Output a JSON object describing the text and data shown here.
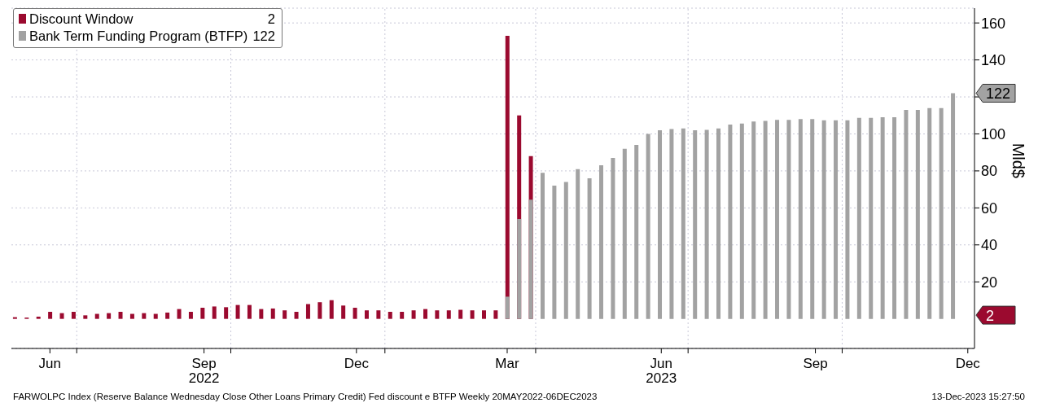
{
  "chart_data": {
    "type": "bar",
    "ylabel": "Mld$",
    "x": [
      "2022-05-25",
      "2022-06-01",
      "2022-06-08",
      "2022-06-15",
      "2022-06-22",
      "2022-06-29",
      "2022-07-06",
      "2022-07-13",
      "2022-07-20",
      "2022-07-27",
      "2022-08-03",
      "2022-08-10",
      "2022-08-17",
      "2022-08-24",
      "2022-08-31",
      "2022-09-07",
      "2022-09-14",
      "2022-09-21",
      "2022-09-28",
      "2022-10-05",
      "2022-10-12",
      "2022-10-19",
      "2022-10-26",
      "2022-11-02",
      "2022-11-09",
      "2022-11-16",
      "2022-11-23",
      "2022-11-30",
      "2022-12-07",
      "2022-12-14",
      "2022-12-21",
      "2022-12-28",
      "2023-01-04",
      "2023-01-11",
      "2023-01-18",
      "2023-01-25",
      "2023-02-01",
      "2023-02-08",
      "2023-02-15",
      "2023-02-22",
      "2023-03-01",
      "2023-03-08",
      "2023-03-15",
      "2023-03-22",
      "2023-03-29",
      "2023-04-05",
      "2023-04-12",
      "2023-04-19",
      "2023-04-26",
      "2023-05-03",
      "2023-05-10",
      "2023-05-17",
      "2023-05-24",
      "2023-05-31",
      "2023-06-07",
      "2023-06-14",
      "2023-06-21",
      "2023-06-28",
      "2023-07-05",
      "2023-07-12",
      "2023-07-19",
      "2023-07-26",
      "2023-08-02",
      "2023-08-09",
      "2023-08-16",
      "2023-08-23",
      "2023-08-30",
      "2023-09-06",
      "2023-09-13",
      "2023-09-20",
      "2023-09-27",
      "2023-10-04",
      "2023-10-11",
      "2023-10-18",
      "2023-10-25",
      "2023-11-01",
      "2023-11-08",
      "2023-11-15",
      "2023-11-22",
      "2023-11-29",
      "2023-12-06"
    ],
    "series": [
      {
        "name": "Discount Window",
        "color": "#9b0a2f",
        "values": [
          0.9,
          0.7,
          1.2,
          3.8,
          3.1,
          3.8,
          1.9,
          2.7,
          3.1,
          3.8,
          2.7,
          3.1,
          2.7,
          3.4,
          5.3,
          3.8,
          6,
          6.7,
          6.3,
          7.5,
          7.5,
          5.3,
          5.6,
          4.6,
          3.8,
          8,
          9,
          10.1,
          7.2,
          6,
          4.6,
          4.6,
          3.8,
          3.8,
          4.6,
          5.3,
          4.6,
          4.6,
          4.9,
          4.6,
          4.6,
          4.6,
          153,
          110,
          88,
          null,
          null,
          null,
          null,
          null,
          null,
          null,
          null,
          null,
          null,
          null,
          null,
          null,
          null,
          null,
          null,
          null,
          null,
          null,
          null,
          null,
          null,
          null,
          null,
          null,
          null,
          null,
          null,
          null,
          null,
          null,
          null,
          null,
          null,
          null,
          null
        ]
      },
      {
        "name": "Bank Term Funding Program (BTFP)",
        "color": "#a2a2a2",
        "values": [
          null,
          null,
          null,
          null,
          null,
          null,
          null,
          null,
          null,
          null,
          null,
          null,
          null,
          null,
          null,
          null,
          null,
          null,
          null,
          null,
          null,
          null,
          null,
          null,
          null,
          null,
          null,
          null,
          null,
          null,
          null,
          null,
          null,
          null,
          null,
          null,
          null,
          null,
          null,
          null,
          null,
          null,
          12,
          54,
          64.5,
          79,
          72,
          74,
          81,
          76,
          83,
          87,
          92,
          94,
          100,
          102,
          102.6,
          103,
          102,
          102.2,
          103,
          105,
          105.6,
          106.7,
          107,
          107.6,
          107.6,
          108,
          108,
          107.4,
          107.4,
          107.4,
          108.7,
          108.7,
          109,
          109,
          113,
          113,
          114,
          114,
          122
        ]
      }
    ],
    "xlim": [
      "2022-05-23",
      "2023-12-19"
    ],
    "xticks": [
      {
        "value": "2022-06-15",
        "label": "Jun"
      },
      {
        "value": "2022-07-01",
        "label": null
      },
      {
        "value": "2022-09-15",
        "label": "Sep\n2022"
      },
      {
        "value": "2022-10-01",
        "label": null
      },
      {
        "value": "2022-12-15",
        "label": "Dec"
      },
      {
        "value": "2023-01-01",
        "label": null
      },
      {
        "value": "2023-03-15",
        "label": "Mar"
      },
      {
        "value": "2023-04-01",
        "label": null
      },
      {
        "value": "2023-06-15",
        "label": "Jun\n2023"
      },
      {
        "value": "2023-07-01",
        "label": null
      },
      {
        "value": "2023-09-15",
        "label": "Sep"
      },
      {
        "value": "2023-10-01",
        "label": null
      },
      {
        "value": "2023-12-15",
        "label": "Dec"
      }
    ],
    "ylim": [
      -16,
      168
    ],
    "yticks": [
      20,
      40,
      60,
      80,
      100,
      {
        "value": 120,
        "label": null
      },
      140,
      160
    ],
    "grid": true,
    "legend": "top left",
    "annotations": [
      {
        "text": "2",
        "x": "2023-12-06",
        "y": 2
      },
      {
        "text": "122",
        "x": "2023-12-06",
        "y": 122
      },
      "FARWOLPC Index (Reserve Balance Wednesday Close Other Loans Primary Credit) Fed discount e BTFP  Weekly 20MAY2022-06DEC2023",
      "13-Dec-2023 15:27:50"
    ]
  }
}
